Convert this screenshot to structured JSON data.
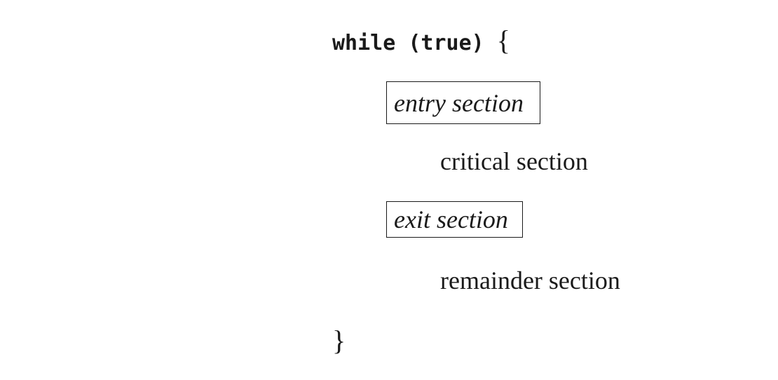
{
  "code": {
    "while_keyword": "while (true)",
    "open_brace": "{",
    "close_brace": "}"
  },
  "sections": {
    "entry": "entry section",
    "critical": "critical section",
    "exit": "exit section",
    "remainder": "remainder section"
  }
}
